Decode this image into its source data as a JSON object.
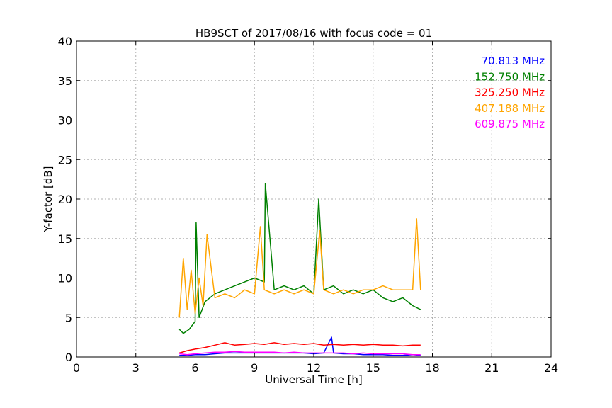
{
  "chart_data": {
    "type": "line",
    "title": "HB9SCT of 2017/08/16 with focus code = 01",
    "xlabel": "Universal Time [h]",
    "ylabel": "Y-factor [dB]",
    "xlim": [
      0,
      24
    ],
    "ylim": [
      0,
      40
    ],
    "xticks": [
      0,
      3,
      6,
      9,
      12,
      15,
      18,
      21,
      24
    ],
    "yticks": [
      0,
      5,
      10,
      15,
      20,
      25,
      30,
      35,
      40
    ],
    "grid": true,
    "legend_position": "top-right",
    "series": [
      {
        "name": "70.813 MHz",
        "color": "#0000ff",
        "x": [
          5.2,
          5.6,
          6.0,
          6.5,
          7.0,
          7.5,
          8.0,
          8.5,
          9.0,
          9.5,
          10.0,
          10.5,
          11.0,
          11.5,
          12.0,
          12.5,
          12.9,
          13.0,
          13.5,
          14.0,
          14.5,
          15.0,
          15.5,
          16.0,
          16.5,
          17.0,
          17.4
        ],
        "y": [
          0.2,
          0.2,
          0.3,
          0.3,
          0.4,
          0.5,
          0.5,
          0.5,
          0.5,
          0.5,
          0.5,
          0.5,
          0.5,
          0.5,
          0.4,
          0.5,
          2.5,
          0.5,
          0.4,
          0.4,
          0.3,
          0.3,
          0.3,
          0.2,
          0.2,
          0.3,
          0.2
        ]
      },
      {
        "name": "152.750 MHz",
        "color": "#008000",
        "x": [
          5.2,
          5.4,
          5.7,
          6.0,
          6.05,
          6.2,
          6.5,
          7.0,
          7.5,
          8.0,
          8.5,
          9.0,
          9.5,
          9.55,
          10.0,
          10.5,
          11.0,
          11.5,
          12.0,
          12.25,
          12.5,
          13.0,
          13.5,
          14.0,
          14.5,
          15.0,
          15.5,
          16.0,
          16.5,
          17.0,
          17.4
        ],
        "y": [
          3.5,
          3.0,
          3.5,
          4.5,
          17.0,
          5.0,
          7.0,
          8.0,
          8.5,
          9.0,
          9.5,
          10.0,
          9.5,
          22.0,
          8.5,
          9.0,
          8.5,
          9.0,
          8.0,
          20.0,
          8.5,
          9.0,
          8.0,
          8.5,
          8.0,
          8.5,
          7.5,
          7.0,
          7.5,
          6.5,
          6.0
        ]
      },
      {
        "name": "325.250 MHz",
        "color": "#ff0000",
        "x": [
          5.2,
          5.6,
          6.0,
          6.5,
          7.0,
          7.5,
          8.0,
          8.5,
          9.0,
          9.5,
          10.0,
          10.5,
          11.0,
          11.5,
          12.0,
          12.5,
          13.0,
          13.5,
          14.0,
          14.5,
          15.0,
          15.5,
          16.0,
          16.5,
          17.0,
          17.4
        ],
        "y": [
          0.5,
          0.8,
          1.0,
          1.2,
          1.5,
          1.8,
          1.5,
          1.6,
          1.7,
          1.6,
          1.8,
          1.6,
          1.7,
          1.6,
          1.7,
          1.5,
          1.6,
          1.5,
          1.6,
          1.5,
          1.6,
          1.5,
          1.5,
          1.4,
          1.5,
          1.5
        ]
      },
      {
        "name": "407.188 MHz",
        "color": "#ffa500",
        "x": [
          5.2,
          5.4,
          5.6,
          5.8,
          6.0,
          6.2,
          6.4,
          6.6,
          7.0,
          7.5,
          8.0,
          8.5,
          9.0,
          9.3,
          9.5,
          10.0,
          10.5,
          11.0,
          11.5,
          12.0,
          12.3,
          12.5,
          13.0,
          13.5,
          14.0,
          14.5,
          15.0,
          15.5,
          16.0,
          16.5,
          17.0,
          17.2,
          17.4
        ],
        "y": [
          5.0,
          12.5,
          6.0,
          11.0,
          5.5,
          10.0,
          6.5,
          15.5,
          7.5,
          8.0,
          7.5,
          8.5,
          8.0,
          16.5,
          8.5,
          8.0,
          8.5,
          8.0,
          8.5,
          8.0,
          16.0,
          8.5,
          8.0,
          8.5,
          8.0,
          8.5,
          8.5,
          9.0,
          8.5,
          8.5,
          8.5,
          17.5,
          8.5
        ]
      },
      {
        "name": "609.875 MHz",
        "color": "#ff00ff",
        "x": [
          5.2,
          5.6,
          6.0,
          6.5,
          7.0,
          7.5,
          8.0,
          8.5,
          9.0,
          9.5,
          10.0,
          10.5,
          11.0,
          11.5,
          12.0,
          12.5,
          13.0,
          13.5,
          14.0,
          14.5,
          15.0,
          15.5,
          16.0,
          16.5,
          17.0,
          17.4
        ],
        "y": [
          0.4,
          0.3,
          0.4,
          0.5,
          0.6,
          0.6,
          0.7,
          0.6,
          0.6,
          0.6,
          0.6,
          0.5,
          0.6,
          0.5,
          0.5,
          0.5,
          0.5,
          0.5,
          0.4,
          0.5,
          0.4,
          0.4,
          0.4,
          0.4,
          0.3,
          0.3
        ]
      }
    ]
  }
}
